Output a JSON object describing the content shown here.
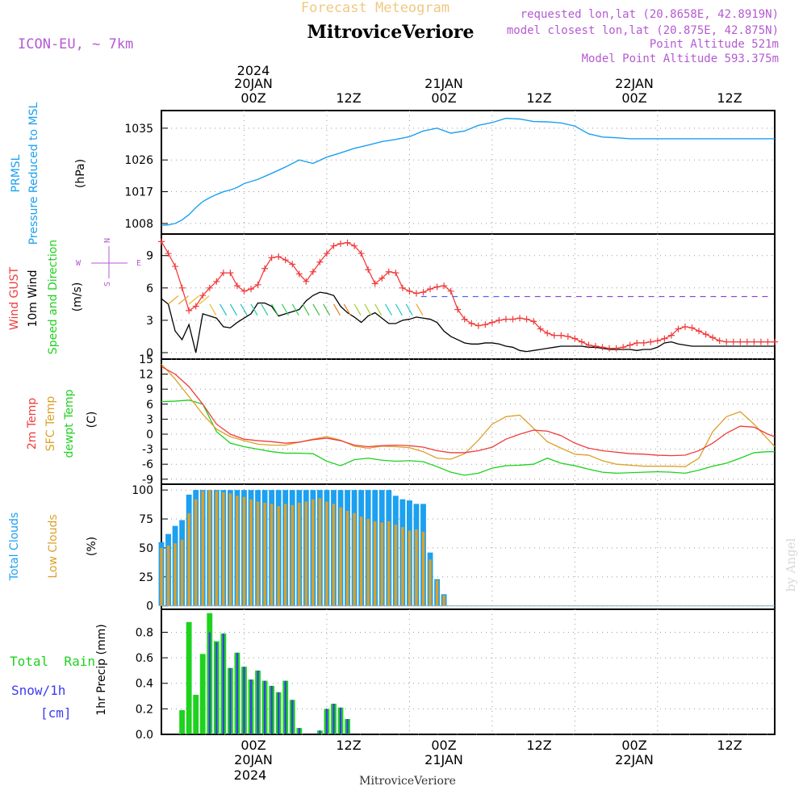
{
  "header": {
    "forecast_title": "Forecast Meteogram",
    "station": "MitroviceVeriore",
    "model": "ICON-EU, ~ 7km",
    "requested": "requested lon,lat (20.8658E, 42.8919N)",
    "closest": "model closest lon,lat (20.875E, 42.875N)",
    "point_alt": "Point Altitude 521m",
    "model_alt": "Model Point Altitude 593.375m",
    "footer_station": "MitroviceVeriore",
    "watermark": "by Angel"
  },
  "colors": {
    "pressure": "#1ca0f0",
    "gust": "#f03c3c",
    "wind": "#000000",
    "t2m": "#f03c3c",
    "sfc": "#dca028",
    "dewpt": "#1ed21e",
    "total_cloud": "#1ca0f0",
    "low_cloud": "#dca028",
    "rain": "#1ed21e",
    "snow": "#3c3cf0",
    "header_purple": "#b45ad2",
    "title_orange": "#f0c882"
  },
  "time_axis": {
    "top_year": "2024",
    "top": [
      "20JAN",
      "21JAN",
      "22JAN"
    ],
    "ticks": [
      "00Z",
      "12Z",
      "00Z",
      "12Z",
      "00Z",
      "12Z"
    ],
    "bottom_dates": [
      "20JAN",
      "21JAN",
      "22JAN"
    ],
    "bottom_year": "2024"
  },
  "panel_labels": {
    "pressure": {
      "l1": "PRMSL",
      "l2": "Pressure Reduced to MSL",
      "unit": "(hPa)"
    },
    "wind": {
      "l1": "Wind GUST",
      "l2": "10m Wind",
      "l3": "Speed and Direction",
      "unit": "(m/s)",
      "compass_n": "N",
      "compass_s": "S",
      "compass_w": "W",
      "compass_e": "E"
    },
    "temp": {
      "l1": "2m Temp",
      "l2": "SFC Temp",
      "l3": "dewpt Temp",
      "unit": "(C)"
    },
    "cloud": {
      "l1": "Total Clouds",
      "l2": "Low Clouds",
      "unit": "(%)"
    },
    "precip": {
      "l1": "Total  Rain",
      "l2": "Snow/1h",
      "l3": "[cm]",
      "unit": "1hr Precip (mm)"
    }
  },
  "chart_data": [
    {
      "type": "line",
      "name": "pressure",
      "x_hours": [
        -12,
        -11,
        -10,
        -9,
        -8,
        -7,
        -6,
        -5,
        -4,
        -3,
        -2,
        -1,
        0,
        2,
        4,
        6,
        8,
        10,
        12,
        14,
        16,
        18,
        20,
        22,
        24,
        26,
        28,
        30,
        32,
        34,
        36,
        38,
        40,
        42,
        44,
        46,
        48,
        50,
        52,
        54,
        56,
        58,
        60,
        62,
        64,
        66,
        68,
        70,
        72,
        74,
        76,
        77
      ],
      "values": [
        1007.5,
        1007.6,
        1008.0,
        1009.0,
        1010.5,
        1012.5,
        1014.2,
        1015.3,
        1016.2,
        1017.0,
        1017.5,
        1018.2,
        1019.3,
        1020.5,
        1022.2,
        1024.0,
        1026.0,
        1025.0,
        1026.8,
        1028.0,
        1029.3,
        1030.2,
        1031.2,
        1031.8,
        1032.6,
        1034.2,
        1035.0,
        1033.6,
        1034.2,
        1035.8,
        1036.6,
        1037.8,
        1037.6,
        1036.9,
        1036.8,
        1036.5,
        1035.6,
        1033.4,
        1032.5,
        1032.3,
        1032.0,
        1032,
        1032,
        1032,
        1032,
        1032,
        1032,
        1032,
        1032,
        1032,
        1032,
        1032
      ],
      "yticks": [
        1008,
        1017,
        1026,
        1035
      ],
      "ylim": [
        1005,
        1040
      ]
    },
    {
      "type": "line",
      "name": "wind",
      "x_hours": [
        -12,
        -11,
        -10,
        -9,
        -8,
        -7,
        -6,
        -5,
        -4,
        -3,
        -2,
        -1,
        0,
        1,
        2,
        3,
        4,
        5,
        6,
        7,
        8,
        9,
        10,
        11,
        12,
        13,
        14,
        15,
        16,
        17,
        18,
        19,
        20,
        21,
        22,
        23,
        24,
        25,
        26,
        27,
        28,
        29,
        30,
        31,
        32,
        33,
        34,
        35,
        36,
        37,
        38,
        39,
        40,
        41,
        42,
        43,
        44,
        45,
        46,
        47,
        48,
        49,
        50,
        51,
        52,
        53,
        54,
        55,
        56,
        57,
        58,
        59,
        60,
        61,
        62,
        63,
        64,
        65,
        66,
        67,
        68,
        69,
        70,
        71,
        72,
        73,
        74,
        75,
        76,
        77
      ],
      "gust": [
        10.3,
        9.2,
        8.0,
        6.0,
        3.9,
        4.3,
        5.3,
        6.0,
        6.6,
        7.4,
        7.4,
        6.2,
        5.7,
        5.9,
        6.3,
        7.8,
        8.8,
        8.9,
        8.6,
        8.2,
        7.3,
        6.6,
        7.5,
        8.4,
        9.2,
        9.9,
        10.1,
        10.2,
        9.9,
        9.2,
        7.7,
        6.4,
        6.9,
        7.5,
        7.4,
        6.0,
        5.7,
        5.5,
        5.6,
        5.9,
        6.1,
        6.2,
        5.7,
        4.0,
        3.1,
        2.7,
        2.5,
        2.6,
        2.8,
        3.0,
        3.1,
        3.1,
        3.2,
        3.1,
        2.9,
        2.2,
        1.8,
        1.6,
        1.6,
        1.5,
        1.3,
        1.0,
        0.7,
        0.6,
        0.5,
        0.4,
        0.4,
        0.5,
        0.7,
        0.9,
        0.9,
        1.0,
        1.1,
        1.3,
        1.6,
        2.2,
        2.4,
        2.3,
        2.0,
        1.7,
        1.4,
        1.1,
        1.0,
        1.0,
        1.0,
        1.0,
        1.0,
        1.0,
        1.0,
        1.0
      ],
      "wind": [
        5.0,
        4.5,
        2.0,
        1.2,
        2.6,
        0.0,
        3.6,
        3.4,
        3.2,
        2.4,
        2.3,
        2.8,
        3.2,
        3.6,
        4.6,
        4.6,
        4.3,
        3.4,
        3.6,
        3.8,
        4.0,
        4.8,
        5.3,
        5.6,
        5.5,
        5.3,
        4.3,
        3.7,
        3.3,
        2.8,
        3.4,
        3.7,
        3.2,
        2.7,
        2.7,
        3.0,
        3.1,
        3.3,
        3.2,
        3.1,
        2.8,
        2.0,
        1.5,
        1.2,
        0.9,
        0.8,
        0.8,
        0.9,
        0.9,
        0.8,
        0.6,
        0.5,
        0.2,
        0.1,
        0.2,
        0.3,
        0.4,
        0.5,
        0.6,
        0.6,
        0.6,
        0.6,
        0.5,
        0.5,
        0.4,
        0.3,
        0.3,
        0.3,
        0.3,
        0.2,
        0.3,
        0.3,
        0.5,
        0.9,
        1.0,
        0.8,
        0.7,
        0.6,
        0.6,
        0.6,
        0.6,
        0.6,
        0.6,
        0.6,
        0.6,
        0.6,
        0.6,
        0.6,
        0.6,
        0.6
      ],
      "yticks": [
        0,
        3,
        6,
        9
      ],
      "ylim": [
        -0.6,
        11
      ]
    },
    {
      "type": "line",
      "name": "temperature",
      "x_hours": [
        -12,
        -10,
        -8,
        -6,
        -4,
        -2,
        0,
        2,
        4,
        6,
        8,
        10,
        12,
        14,
        16,
        18,
        20,
        22,
        24,
        26,
        28,
        30,
        32,
        34,
        36,
        38,
        40,
        42,
        44,
        46,
        48,
        50,
        52,
        54,
        56,
        58,
        60,
        62,
        64,
        66,
        68,
        70,
        72,
        74,
        76,
        77
      ],
      "t2m": [
        13.5,
        12.0,
        9.5,
        6.0,
        2.0,
        0.0,
        -1.0,
        -1.3,
        -1.5,
        -1.8,
        -1.6,
        -1.1,
        -0.8,
        -1.3,
        -2.2,
        -2.5,
        -2.3,
        -2.2,
        -2.3,
        -2.6,
        -3.3,
        -3.7,
        -3.7,
        -3.3,
        -2.6,
        -1.0,
        0.0,
        0.8,
        0.6,
        -0.3,
        -1.8,
        -2.8,
        -3.3,
        -3.6,
        -3.9,
        -4.0,
        -4.2,
        -4.3,
        -4.2,
        -3.3,
        -1.8,
        0.2,
        1.6,
        1.4,
        0.0,
        -0.5
      ],
      "sfc": [
        14.0,
        11.0,
        7.5,
        4.0,
        1.0,
        -0.5,
        -1.3,
        -2.0,
        -2.2,
        -2.2,
        -1.6,
        -1.0,
        -0.5,
        -1.2,
        -2.4,
        -2.8,
        -2.4,
        -2.5,
        -2.7,
        -3.5,
        -4.8,
        -5.0,
        -3.9,
        -1.2,
        2.0,
        3.5,
        3.8,
        1.2,
        -1.5,
        -2.8,
        -4.0,
        -4.2,
        -5.3,
        -6.0,
        -6.2,
        -6.4,
        -6.4,
        -6.4,
        -6.5,
        -4.8,
        0.5,
        3.5,
        4.5,
        2.0,
        -1.0,
        -2.5
      ],
      "dewpt": [
        6.5,
        6.6,
        6.8,
        6.0,
        0.5,
        -1.8,
        -2.5,
        -3.0,
        -3.5,
        -3.8,
        -3.8,
        -3.9,
        -5.4,
        -6.3,
        -5.1,
        -4.8,
        -5.2,
        -5.4,
        -5.3,
        -5.5,
        -6.5,
        -7.6,
        -8.2,
        -7.8,
        -6.8,
        -6.3,
        -6.2,
        -6.0,
        -4.8,
        -5.8,
        -6.3,
        -7.0,
        -7.6,
        -7.8,
        -7.7,
        -7.6,
        -7.5,
        -7.6,
        -7.8,
        -7.2,
        -6.4,
        -5.8,
        -4.8,
        -3.7,
        -3.5,
        -3.5
      ],
      "yticks": [
        -9,
        -6,
        -3,
        0,
        3,
        6,
        9,
        12,
        15
      ],
      "ylim": [
        -10,
        15
      ]
    },
    {
      "type": "bar",
      "name": "clouds",
      "x_hours": [
        -12,
        -11,
        -10,
        -9,
        -8,
        -7,
        -6,
        -5,
        -4,
        -3,
        -2,
        -1,
        0,
        1,
        2,
        3,
        4,
        5,
        6,
        7,
        8,
        9,
        10,
        11,
        12,
        13,
        14,
        15,
        16,
        17,
        18,
        19,
        20,
        21,
        22,
        23,
        24,
        25,
        26,
        27,
        28,
        29,
        30,
        31,
        32,
        33,
        34,
        35,
        36,
        37,
        38,
        39,
        40,
        41,
        42,
        43,
        44,
        45,
        46,
        47,
        48,
        49,
        50,
        51,
        52,
        53,
        54,
        55,
        56,
        57,
        58,
        59,
        60,
        61,
        62,
        63,
        64,
        65,
        66,
        67,
        68,
        69,
        70,
        71,
        72,
        73,
        74,
        75,
        76,
        77
      ],
      "total": [
        55,
        62,
        69,
        74,
        96,
        100,
        100,
        100,
        100,
        100,
        100,
        100,
        100,
        100,
        100,
        100,
        100,
        100,
        100,
        100,
        100,
        100,
        100,
        100,
        100,
        100,
        100,
        100,
        100,
        100,
        100,
        100,
        100,
        100,
        95,
        92,
        91,
        88,
        88,
        46,
        23,
        10,
        0,
        0,
        0,
        0,
        0,
        0,
        0,
        0,
        0,
        0,
        0,
        0,
        0,
        0,
        0,
        0,
        0,
        0,
        0,
        0,
        0,
        0,
        0,
        0,
        0,
        0,
        0,
        0,
        0,
        0,
        0,
        0,
        0,
        0,
        0,
        0,
        0,
        0,
        0,
        0,
        0,
        0,
        0,
        0,
        0,
        0,
        0,
        0
      ],
      "low": [
        50,
        52,
        54,
        57,
        80,
        92,
        99,
        100,
        99,
        98,
        97,
        95,
        94,
        92,
        90,
        89,
        88,
        86,
        88,
        87,
        89,
        90,
        92,
        93,
        90,
        88,
        85,
        82,
        80,
        77,
        75,
        73,
        72,
        73,
        70,
        68,
        65,
        66,
        64,
        40,
        22,
        9,
        0,
        0,
        0,
        0,
        0,
        0,
        0,
        0,
        0,
        0,
        0,
        0,
        0,
        0,
        0,
        0,
        0,
        0,
        0,
        0,
        0,
        0,
        0,
        0,
        0,
        0,
        0,
        0,
        0,
        0,
        0,
        0,
        0,
        0,
        0,
        0,
        0,
        0,
        0,
        0,
        0,
        0,
        0,
        0,
        0,
        0,
        0,
        0
      ],
      "yticks": [
        0,
        25,
        50,
        75,
        100
      ],
      "ylim": [
        -3,
        105
      ]
    },
    {
      "type": "bar",
      "name": "precipitation",
      "x_hours": [
        -12,
        -11,
        -10,
        -9,
        -8,
        -7,
        -6,
        -5,
        -4,
        -3,
        -2,
        -1,
        0,
        1,
        2,
        3,
        4,
        5,
        6,
        7,
        8,
        9,
        10,
        11,
        12,
        13,
        14,
        15,
        16,
        17,
        18,
        19,
        20,
        21,
        22,
        23,
        24
      ],
      "rain": [
        0,
        0,
        0,
        0.19,
        0.88,
        0.31,
        0.63,
        0.95,
        0.73,
        0.79,
        0.52,
        0.64,
        0.53,
        0.43,
        0.5,
        0.42,
        0.38,
        0.33,
        0.42,
        0.27,
        0.05,
        0,
        0,
        0.03,
        0.2,
        0.24,
        0.21,
        0.12,
        0,
        0,
        0,
        0,
        0,
        0,
        0,
        0,
        0
      ],
      "snow": [
        0,
        0,
        0,
        0,
        0,
        0,
        0,
        0.8,
        0.72,
        0.79,
        0.52,
        0.64,
        0.53,
        0.43,
        0.5,
        0.42,
        0.38,
        0.33,
        0.42,
        0.27,
        0.05,
        0,
        0,
        0.03,
        0.2,
        0.24,
        0.21,
        0.12,
        0,
        0,
        0,
        0,
        0,
        0,
        0,
        0,
        0
      ],
      "yticks": [
        0,
        0.2,
        0.4,
        0.6,
        0.8
      ],
      "ylim": [
        0,
        0.98
      ]
    }
  ]
}
